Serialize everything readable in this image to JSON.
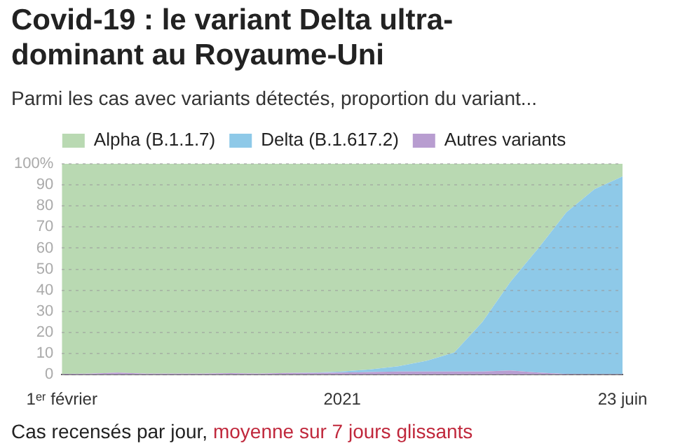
{
  "chart_data": {
    "type": "area",
    "stacked": true,
    "title": "Covid-19 : le variant Delta ultra-dominant au Royaume-Uni",
    "subtitle": "Parmi les cas avec variants détectés, proportion du variant...",
    "categories": [
      "1ᵉʳ février",
      null,
      null,
      null,
      null,
      null,
      null,
      null,
      null,
      null,
      "2021",
      null,
      null,
      null,
      null,
      null,
      null,
      null,
      null,
      null,
      "23 juin"
    ],
    "series": [
      {
        "name": "Autres variants",
        "color": "#b89dd0",
        "values": [
          0.3,
          0.5,
          1,
          0.5,
          0.5,
          0.5,
          0.7,
          0.5,
          0.8,
          0.8,
          1,
          1.2,
          1.5,
          1.5,
          1.5,
          1.5,
          2,
          1,
          0.3,
          0.2,
          0.2
        ]
      },
      {
        "name": "Delta (B.1.617.2)",
        "color": "#8ec9e8",
        "values": [
          0,
          0,
          0,
          0,
          0,
          0,
          0,
          0,
          0,
          0.2,
          0.5,
          1.3,
          2.5,
          5,
          9,
          23.5,
          42,
          59,
          76.7,
          87.8,
          93.8
        ]
      },
      {
        "name": "Alpha (B.1.1.7)",
        "color": "#b9d9b2",
        "values": [
          99.7,
          99.5,
          99,
          99.5,
          99.5,
          99.5,
          99.3,
          99.5,
          99.2,
          99,
          98.5,
          97.5,
          96,
          93.5,
          89.5,
          75,
          56,
          40,
          23,
          12,
          6
        ]
      }
    ],
    "ylim": [
      0,
      100
    ],
    "yticks": [
      0,
      10,
      20,
      30,
      40,
      50,
      60,
      70,
      80,
      90,
      {
        "value": 100,
        "label": "100%"
      }
    ],
    "grid": "y",
    "legend": "top",
    "annotations": [
      "Cas recensés par jour,",
      "moyenne sur 7 jours glissants"
    ]
  }
}
